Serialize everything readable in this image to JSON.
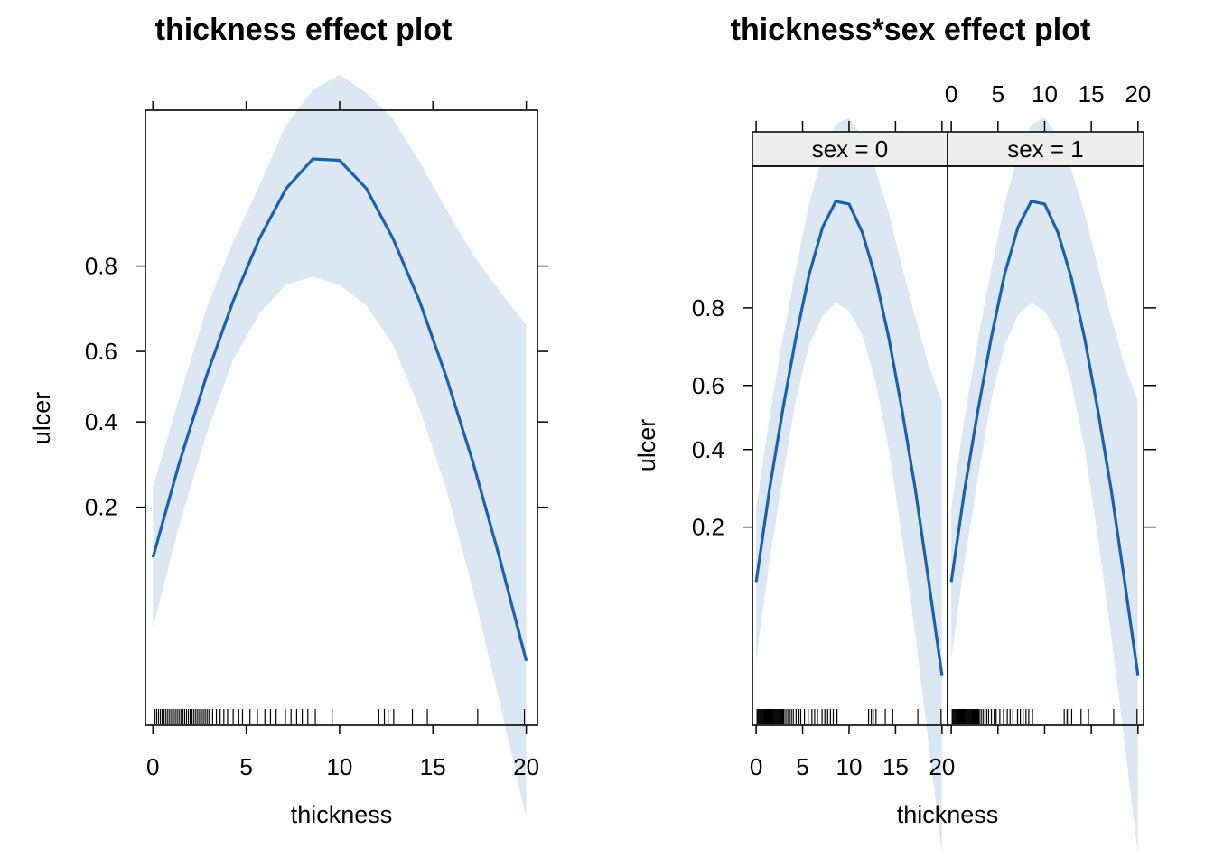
{
  "colors": {
    "line": "#1f5fa6",
    "band": "#dbe7f3",
    "strip": "#eeeeee",
    "frame": "#000000"
  },
  "chart_data": [
    {
      "type": "line",
      "title": "thickness effect plot",
      "xlabel": "thickness",
      "ylabel": "ulcer",
      "xlim": [
        -0.4,
        20.6
      ],
      "ylim": [
        0.02,
        0.96
      ],
      "y_scale": "logit",
      "xticks": [
        0,
        5,
        10,
        15,
        20
      ],
      "xtick_labels": [
        "0",
        "5",
        "10",
        "15",
        "20"
      ],
      "yticks": [
        0.2,
        0.4,
        0.6,
        0.8
      ],
      "ytick_labels": [
        "0.2",
        "0.4",
        "0.6",
        "0.8"
      ],
      "panels": [
        {
          "strip": "",
          "x": [
            0.0,
            1.43,
            2.86,
            4.29,
            5.71,
            7.14,
            8.57,
            10.0,
            11.43,
            12.86,
            14.29,
            15.71,
            17.14,
            18.57,
            20.0
          ],
          "fit": [
            0.123,
            0.296,
            0.529,
            0.727,
            0.846,
            0.907,
            0.932,
            0.931,
            0.907,
            0.846,
            0.727,
            0.529,
            0.296,
            0.123,
            0.041
          ],
          "lower": [
            0.059,
            0.171,
            0.366,
            0.576,
            0.699,
            0.764,
            0.78,
            0.763,
            0.718,
            0.618,
            0.437,
            0.236,
            0.088,
            0.026,
            0.007
          ],
          "upper": [
            0.24,
            0.47,
            0.71,
            0.84,
            0.91,
            0.953,
            0.968,
            0.973,
            0.967,
            0.956,
            0.93,
            0.885,
            0.82,
            0.75,
            0.67
          ]
        }
      ],
      "rug": [
        0.1,
        0.2,
        0.3,
        0.4,
        0.5,
        0.6,
        0.7,
        0.8,
        0.9,
        1.0,
        1.1,
        1.2,
        1.3,
        1.4,
        1.5,
        1.6,
        1.7,
        1.8,
        1.9,
        2.0,
        2.1,
        2.2,
        2.3,
        2.4,
        2.5,
        2.6,
        2.7,
        2.8,
        2.9,
        3.0,
        3.2,
        3.4,
        3.6,
        3.8,
        4.0,
        4.3,
        4.6,
        4.8,
        5.2,
        5.6,
        6.0,
        6.3,
        6.6,
        7.1,
        7.4,
        7.7,
        8.0,
        8.3,
        8.7,
        9.6,
        12.1,
        12.4,
        12.6,
        12.9,
        13.9,
        14.7,
        17.4,
        19.9
      ]
    },
    {
      "type": "line",
      "title": "thickness*sex effect plot",
      "xlabel": "thickness",
      "ylabel": "ulcer",
      "xlim": [
        -0.4,
        20.6
      ],
      "ylim": [
        0.02,
        0.96
      ],
      "y_scale": "logit",
      "xticks": [
        0,
        5,
        10,
        15,
        20
      ],
      "xtick_labels": [
        "0",
        "5",
        "10",
        "15",
        "20"
      ],
      "yticks": [
        0.2,
        0.4,
        0.6,
        0.8
      ],
      "ytick_labels": [
        "0.2",
        "0.4",
        "0.6",
        "0.8"
      ],
      "panels": [
        {
          "strip": "sex = 0",
          "x": [
            0.0,
            1.43,
            2.86,
            4.29,
            5.71,
            7.14,
            8.57,
            10.0,
            11.43,
            12.86,
            14.29,
            15.71,
            17.14,
            18.57,
            20.0
          ],
          "fit": [
            0.111,
            0.286,
            0.523,
            0.734,
            0.859,
            0.917,
            0.939,
            0.937,
            0.912,
            0.854,
            0.731,
            0.522,
            0.286,
            0.112,
            0.037
          ],
          "lower": [
            0.045,
            0.14,
            0.318,
            0.558,
            0.714,
            0.784,
            0.81,
            0.794,
            0.74,
            0.61,
            0.4,
            0.18,
            0.06,
            0.016,
            0.004
          ],
          "upper": [
            0.24,
            0.5,
            0.73,
            0.868,
            0.937,
            0.965,
            0.976,
            0.978,
            0.972,
            0.958,
            0.93,
            0.87,
            0.78,
            0.66,
            0.55
          ]
        },
        {
          "strip": "sex = 1",
          "x": [
            0.0,
            1.43,
            2.86,
            4.29,
            5.71,
            7.14,
            8.57,
            10.0,
            11.43,
            12.86,
            14.29,
            15.71,
            17.14,
            18.57,
            20.0
          ],
          "fit": [
            0.111,
            0.286,
            0.523,
            0.734,
            0.859,
            0.917,
            0.939,
            0.937,
            0.912,
            0.854,
            0.731,
            0.522,
            0.286,
            0.112,
            0.037
          ],
          "lower": [
            0.045,
            0.14,
            0.318,
            0.558,
            0.714,
            0.784,
            0.81,
            0.794,
            0.74,
            0.61,
            0.4,
            0.18,
            0.06,
            0.016,
            0.004
          ],
          "upper": [
            0.24,
            0.5,
            0.73,
            0.868,
            0.937,
            0.965,
            0.976,
            0.978,
            0.972,
            0.958,
            0.93,
            0.87,
            0.78,
            0.66,
            0.55
          ]
        }
      ],
      "rug": [
        0.1,
        0.2,
        0.3,
        0.4,
        0.5,
        0.6,
        0.7,
        0.8,
        0.9,
        1.0,
        1.1,
        1.2,
        1.3,
        1.4,
        1.5,
        1.6,
        1.7,
        1.8,
        1.9,
        2.0,
        2.1,
        2.2,
        2.3,
        2.4,
        2.5,
        2.6,
        2.7,
        2.8,
        2.9,
        3.0,
        3.2,
        3.4,
        3.6,
        3.8,
        4.0,
        4.3,
        4.6,
        4.8,
        5.2,
        5.6,
        6.0,
        6.3,
        6.6,
        7.1,
        7.4,
        7.7,
        8.0,
        8.3,
        8.7,
        12.1,
        12.4,
        12.6,
        12.9,
        13.9,
        14.7,
        17.4,
        19.9
      ]
    }
  ]
}
